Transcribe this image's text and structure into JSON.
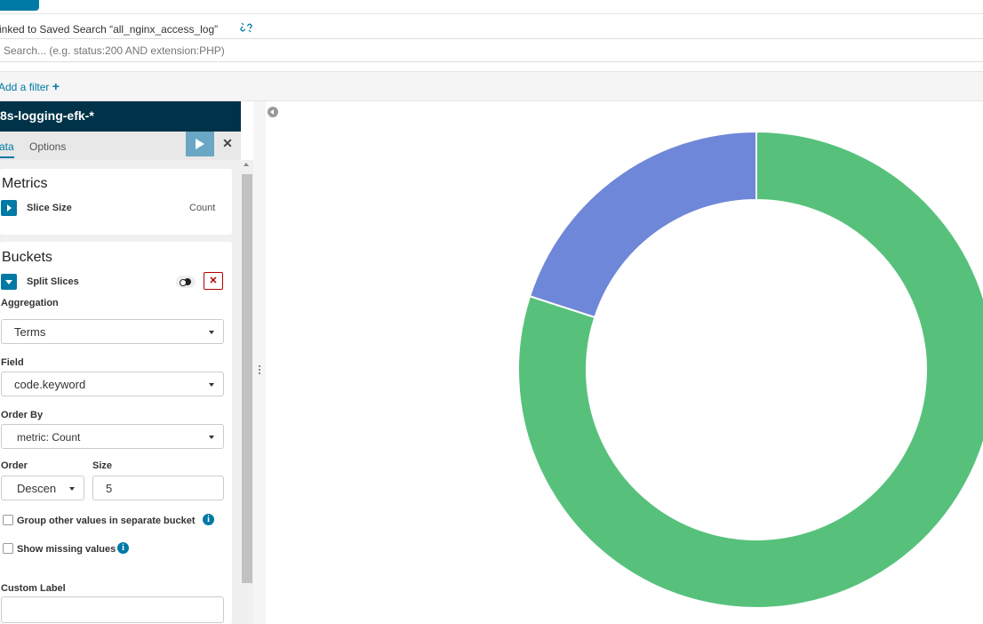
{
  "linked_search": {
    "text": "inked to Saved Search “all_nginx_access_log”",
    "icon": "unlink-icon"
  },
  "search": {
    "placeholder": "Search... (e.g. status:200 AND extension:PHP)"
  },
  "filter": {
    "add_label": "Add a filter",
    "add_icon_glyph": "+"
  },
  "sidebar": {
    "index_pattern": "8s-logging-efk-*",
    "tabs": [
      {
        "label": "ata"
      },
      {
        "label": "Options"
      }
    ],
    "close_glyph": "✕",
    "metrics": {
      "title": "Metrics",
      "item_label": "Slice Size",
      "item_value": "Count"
    },
    "buckets": {
      "title": "Buckets",
      "item_label": "Split Slices",
      "remove_glyph": "✕",
      "aggregation_label": "Aggregation",
      "aggregation_value": "Terms",
      "field_label": "Field",
      "field_value": "code.keyword",
      "order_by_label": "Order By",
      "order_by_value": "metric: Count",
      "order_label": "Order",
      "order_value": "Descen",
      "size_label": "Size",
      "size_value": "5",
      "group_other_label": "Group other values in separate bucket",
      "show_missing_label": "Show missing values",
      "custom_label_label": "Custom Label",
      "custom_label_value": "",
      "info_glyph": "i"
    }
  },
  "chart_data": {
    "type": "pie",
    "donut": true,
    "slices": [
      {
        "value": 80,
        "color": "#57c17b"
      },
      {
        "value": 20,
        "color": "#6f87d8"
      }
    ]
  }
}
